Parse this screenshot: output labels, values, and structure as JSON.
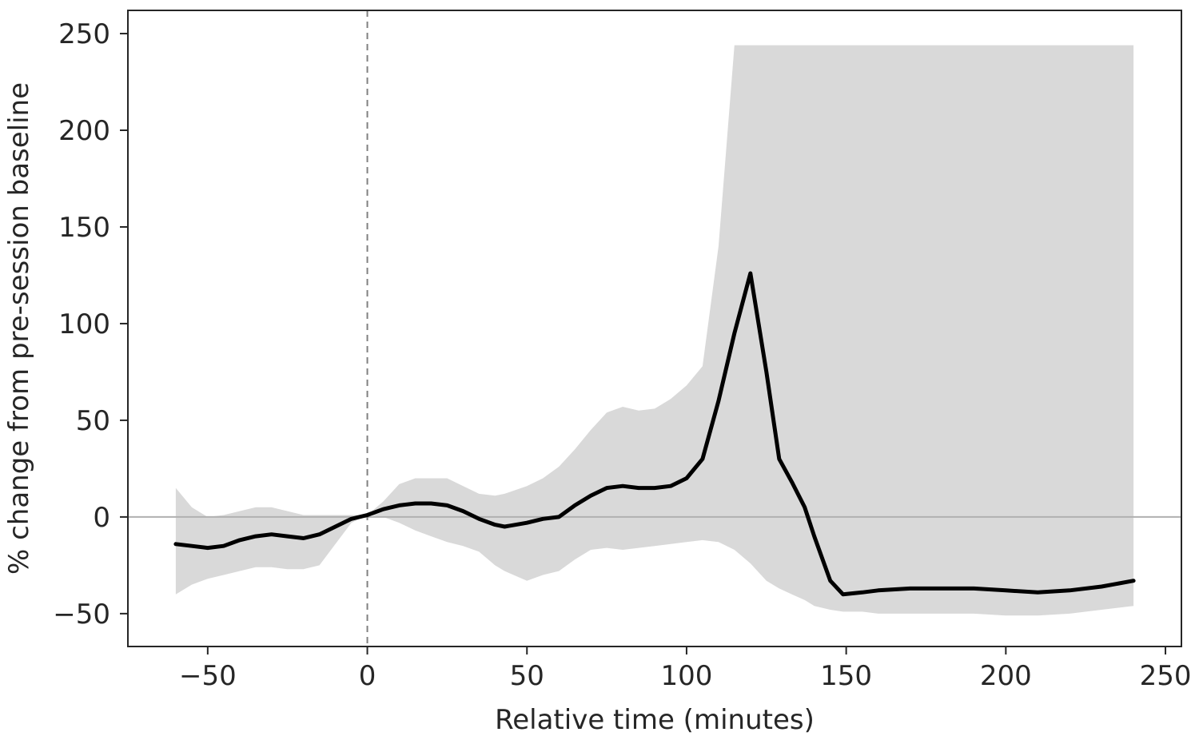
{
  "chart_data": {
    "type": "line",
    "title": "",
    "xlabel": "Relative time (minutes)",
    "ylabel": "% change from pre-session baseline",
    "xlim": [
      -75,
      255
    ],
    "ylim": [
      -67,
      262
    ],
    "xticks": [
      -50,
      0,
      50,
      100,
      150,
      200,
      250
    ],
    "xtick_labels": [
      "−50",
      "0",
      "50",
      "100",
      "150",
      "200",
      "250"
    ],
    "yticks": [
      -50,
      0,
      50,
      100,
      150,
      200,
      250
    ],
    "ytick_labels": [
      "−50",
      "0",
      "50",
      "100",
      "150",
      "200",
      "250"
    ],
    "grid": false,
    "legend": "none",
    "reference_lines": {
      "vertical_dashed_x": 0,
      "horizontal_y": 0
    },
    "colors": {
      "line": "#000000",
      "band": "#d9d9d9",
      "zero_line": "#b0b0b0",
      "vline": "#808080",
      "axis": "#262626"
    },
    "series": [
      {
        "x": [
          -60,
          -55,
          -50,
          -45,
          -40,
          -35,
          -30,
          -25,
          -20,
          -15,
          -10,
          -5,
          0,
          5,
          10,
          15,
          20,
          25,
          30,
          35,
          40,
          43,
          50,
          55,
          60,
          65,
          70,
          75,
          80,
          85,
          90,
          95,
          100,
          105,
          110,
          115,
          120,
          125,
          129,
          133,
          137,
          140,
          145,
          149,
          155,
          160,
          170,
          180,
          190,
          200,
          210,
          220,
          230,
          240
        ],
        "y": [
          -14,
          -15,
          -16,
          -15,
          -12,
          -10,
          -9,
          -10,
          -11,
          -9,
          -5,
          -1,
          1,
          4,
          6,
          7,
          7,
          6,
          3,
          -1,
          -4,
          -5,
          -3,
          -1,
          0,
          6,
          11,
          15,
          16,
          15,
          15,
          16,
          20,
          30,
          60,
          95,
          126,
          75,
          30,
          18,
          5,
          -10,
          -33,
          -40,
          -39,
          -38,
          -37,
          -37,
          -37,
          -38,
          -39,
          -38,
          -36,
          -33
        ],
        "band_lower": [
          -40,
          -35,
          -32,
          -30,
          -28,
          -26,
          -26,
          -27,
          -27,
          -25,
          -14,
          -3,
          1,
          0,
          -3,
          -7,
          -10,
          -13,
          -15,
          -18,
          -25,
          -28,
          -33,
          -30,
          -28,
          -22,
          -17,
          -16,
          -17,
          -16,
          -15,
          -14,
          -13,
          -12,
          -13,
          -17,
          -24,
          -33,
          -37,
          -40,
          -43,
          -46,
          -48,
          -49,
          -49,
          -50,
          -50,
          -50,
          -50,
          -51,
          -51,
          -50,
          -48,
          -46
        ],
        "band_upper": [
          15,
          5,
          0,
          1,
          3,
          5,
          5,
          3,
          1,
          1,
          1,
          1,
          1,
          8,
          17,
          20,
          20,
          20,
          16,
          12,
          11,
          12,
          16,
          20,
          26,
          35,
          45,
          54,
          57,
          55,
          56,
          61,
          68,
          78,
          140,
          244,
          244,
          244,
          244,
          244,
          244,
          244,
          244,
          244,
          244,
          244,
          244,
          244,
          244,
          244,
          244,
          244,
          244,
          244
        ]
      }
    ]
  }
}
